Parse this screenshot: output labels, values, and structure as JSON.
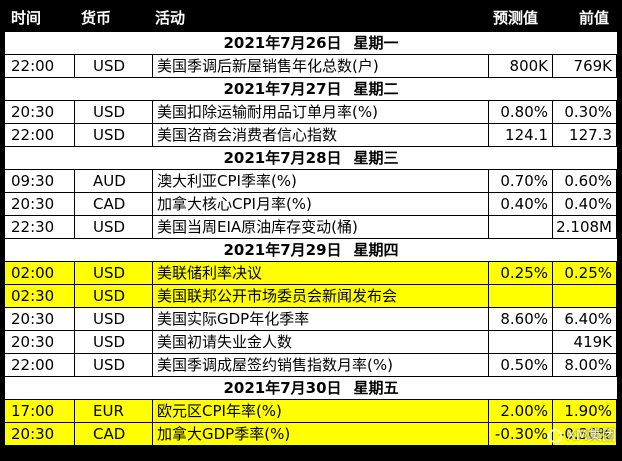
{
  "header": {
    "time": "时间",
    "currency": "货币",
    "activity": "活动",
    "forecast": "预测值",
    "previous": "前值"
  },
  "sections": [
    {
      "date": "2021年7月26日",
      "weekday": "星期一",
      "rows": [
        {
          "time": "22:00",
          "currency": "USD",
          "event": "美国季调后新屋销售年化总数(户)",
          "forecast": "800K",
          "previous": "769K",
          "highlight": false
        }
      ]
    },
    {
      "date": "2021年7月27日",
      "weekday": "星期二",
      "rows": [
        {
          "time": "20:30",
          "currency": "USD",
          "event": "美国扣除运输耐用品订单月率(%)",
          "forecast": "0.80%",
          "previous": "0.30%",
          "highlight": false
        },
        {
          "time": "22:00",
          "currency": "USD",
          "event": "美国咨商会消费者信心指数",
          "forecast": "124.1",
          "previous": "127.3",
          "highlight": false
        }
      ]
    },
    {
      "date": "2021年7月28日",
      "weekday": "星期三",
      "rows": [
        {
          "time": "09:30",
          "currency": "AUD",
          "event": "澳大利亚CPI季率(%)",
          "forecast": "0.70%",
          "previous": "0.60%",
          "highlight": false
        },
        {
          "time": "20:30",
          "currency": "CAD",
          "event": "加拿大核心CPI月率(%)",
          "forecast": "0.40%",
          "previous": "0.40%",
          "highlight": false
        },
        {
          "time": "22:30",
          "currency": "USD",
          "event": "美国当周EIA原油库存变动(桶)",
          "forecast": "",
          "previous": "2.108M",
          "highlight": false
        }
      ]
    },
    {
      "date": "2021年7月29日",
      "weekday": "星期四",
      "rows": [
        {
          "time": "02:00",
          "currency": "USD",
          "event": "美联储利率决议",
          "forecast": "0.25%",
          "previous": "0.25%",
          "highlight": true
        },
        {
          "time": "02:30",
          "currency": "USD",
          "event": "美国联邦公开市场委员会新闻发布会",
          "forecast": "",
          "previous": "",
          "highlight": true
        },
        {
          "time": "20:30",
          "currency": "USD",
          "event": "美国实际GDP年化季率",
          "forecast": "8.60%",
          "previous": "6.40%",
          "highlight": false
        },
        {
          "time": "20:30",
          "currency": "USD",
          "event": "美国初请失业金人数",
          "forecast": "",
          "previous": "419K",
          "highlight": false
        },
        {
          "time": "22:00",
          "currency": "USD",
          "event": "美国季调成屋签约销售指数月率(%)",
          "forecast": "0.50%",
          "previous": "8.00%",
          "highlight": false
        }
      ]
    },
    {
      "date": "2021年7月30日",
      "weekday": "星期五",
      "rows": [
        {
          "time": "17:00",
          "currency": "EUR",
          "event": "欧元区CPI年率(%)",
          "forecast": "2.00%",
          "previous": "1.90%",
          "highlight": true
        },
        {
          "time": "20:30",
          "currency": "CAD",
          "event": "加拿大GDP季率(%)",
          "forecast": "-0.30%",
          "previous": "-0.30%",
          "highlight": true
        }
      ]
    }
  ],
  "watermark": "XM集团"
}
